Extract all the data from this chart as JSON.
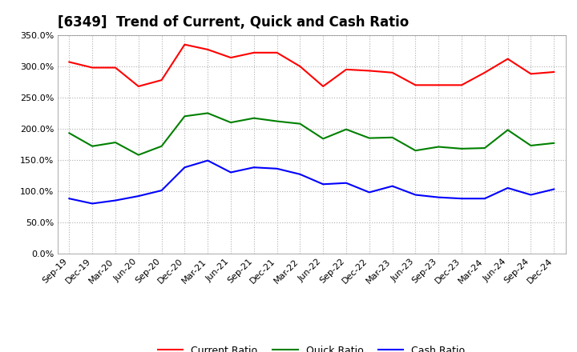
{
  "title": "[6349]  Trend of Current, Quick and Cash Ratio",
  "x_labels": [
    "Sep-19",
    "Dec-19",
    "Mar-20",
    "Jun-20",
    "Sep-20",
    "Dec-20",
    "Mar-21",
    "Jun-21",
    "Sep-21",
    "Dec-21",
    "Mar-22",
    "Jun-22",
    "Sep-22",
    "Dec-22",
    "Mar-23",
    "Jun-23",
    "Sep-23",
    "Dec-23",
    "Mar-24",
    "Jun-24",
    "Sep-24",
    "Dec-24"
  ],
  "current_ratio": [
    3.07,
    2.98,
    2.98,
    2.68,
    2.78,
    3.35,
    3.27,
    3.14,
    3.22,
    3.22,
    3.0,
    2.68,
    2.95,
    2.93,
    2.9,
    2.7,
    2.7,
    2.7,
    2.9,
    3.12,
    2.88,
    2.91
  ],
  "quick_ratio": [
    1.93,
    1.72,
    1.78,
    1.58,
    1.72,
    2.2,
    2.25,
    2.1,
    2.17,
    2.12,
    2.08,
    1.84,
    1.99,
    1.85,
    1.86,
    1.65,
    1.71,
    1.68,
    1.69,
    1.98,
    1.73,
    1.77
  ],
  "cash_ratio": [
    0.88,
    0.8,
    0.85,
    0.92,
    1.01,
    1.38,
    1.49,
    1.3,
    1.38,
    1.36,
    1.27,
    1.11,
    1.13,
    0.98,
    1.08,
    0.94,
    0.9,
    0.88,
    0.88,
    1.05,
    0.94,
    1.03
  ],
  "current_color": "#ff0000",
  "quick_color": "#008000",
  "cash_color": "#0000ff",
  "ylim": [
    0.0,
    3.5
  ],
  "yticks": [
    0.0,
    0.5,
    1.0,
    1.5,
    2.0,
    2.5,
    3.0,
    3.5
  ],
  "background_color": "#ffffff",
  "plot_bg_color": "#ffffff",
  "grid_color": "#b0b0b0",
  "title_fontsize": 12,
  "legend_fontsize": 9,
  "tick_fontsize": 8
}
